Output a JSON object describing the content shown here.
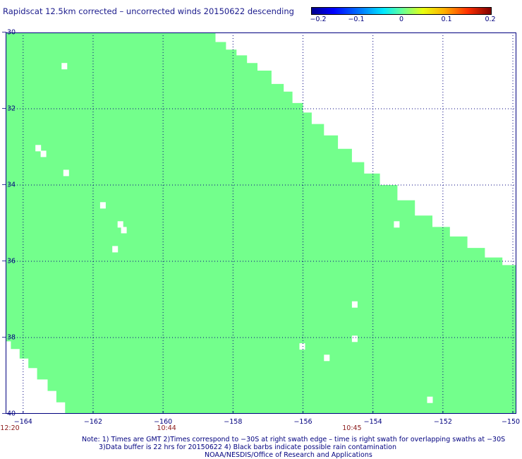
{
  "title": "Rapidscat 12.5km corrected – uncorrected winds 20150622 descending",
  "colorbar": {
    "ticks": [
      "−0.2",
      "−0.1",
      "0",
      "0.1",
      "0.2"
    ],
    "tick_values": [
      -0.2,
      -0.1,
      0,
      0.1,
      0.2
    ],
    "colors": [
      "#00008f",
      "#0000ff",
      "#00e8ff",
      "#60ff9f",
      "#e8ff10",
      "#ff3000",
      "#800000"
    ]
  },
  "map": {
    "lon_range": [
      -164.5,
      -149.9
    ],
    "lat_range": [
      -30,
      -40
    ],
    "lon_labels": [
      "−164",
      "−162",
      "−160",
      "−158",
      "−156",
      "−154",
      "−152",
      "−150"
    ],
    "lon_values": [
      -164,
      -162,
      -160,
      -158,
      -156,
      -154,
      -152,
      -150
    ],
    "lat_labels": [
      "−30",
      "−32",
      "−34",
      "−36",
      "−38",
      "−40"
    ],
    "lat_values": [
      -30,
      -32,
      -34,
      -36,
      -38,
      -40
    ],
    "swath_color": "#73ff8c",
    "grid": true,
    "swath_top_edge": [
      [
        -164.5,
        -30.0
      ],
      [
        -158.6,
        -30.0
      ],
      [
        -158.5,
        -30.25
      ],
      [
        -158.2,
        -30.45
      ],
      [
        -157.9,
        -30.6
      ],
      [
        -157.6,
        -30.8
      ],
      [
        -157.3,
        -31.0
      ],
      [
        -156.9,
        -31.35
      ],
      [
        -156.55,
        -31.55
      ],
      [
        -156.3,
        -31.85
      ],
      [
        -156.0,
        -32.1
      ],
      [
        -155.75,
        -32.4
      ],
      [
        -155.4,
        -32.7
      ],
      [
        -155.0,
        -33.05
      ],
      [
        -154.6,
        -33.4
      ],
      [
        -154.25,
        -33.7
      ],
      [
        -153.8,
        -34.0
      ],
      [
        -153.3,
        -34.4
      ],
      [
        -152.8,
        -34.8
      ],
      [
        -152.3,
        -35.1
      ],
      [
        -151.8,
        -35.35
      ],
      [
        -151.3,
        -35.65
      ],
      [
        -150.8,
        -35.9
      ],
      [
        -150.3,
        -36.1
      ],
      [
        -149.9,
        -36.25
      ]
    ],
    "swath_bottom_edge": [
      [
        -149.9,
        -40.0
      ],
      [
        -162.5,
        -40.0
      ],
      [
        -162.8,
        -39.7
      ],
      [
        -163.05,
        -39.4
      ],
      [
        -163.3,
        -39.1
      ],
      [
        -163.6,
        -38.8
      ],
      [
        -163.85,
        -38.55
      ],
      [
        -164.1,
        -38.3
      ],
      [
        -164.35,
        -38.1
      ],
      [
        -164.5,
        -37.9
      ]
    ],
    "missing_cells": [
      [
        -162.9,
        -30.8
      ],
      [
        -163.65,
        -32.95
      ],
      [
        -163.5,
        -33.1
      ],
      [
        -162.85,
        -33.6
      ],
      [
        -161.8,
        -34.45
      ],
      [
        -161.3,
        -34.95
      ],
      [
        -161.2,
        -35.1
      ],
      [
        -161.45,
        -35.6
      ],
      [
        -156.1,
        -38.15
      ],
      [
        -155.4,
        -38.45
      ],
      [
        -154.6,
        -37.05
      ],
      [
        -154.6,
        -37.95
      ],
      [
        -153.4,
        -34.95
      ],
      [
        -152.45,
        -39.55
      ]
    ]
  },
  "times": [
    {
      "label": "12:20",
      "lon": -164.6
    },
    {
      "label": "10:44",
      "lon": -159.9
    },
    {
      "label": "10:45",
      "lon": -154.6
    }
  ],
  "notes": [
    "Note: 1) Times are GMT 2)Times correspond to −30S at right swath edge – time is right swath for overlapping swaths at −30S",
    "3)Data buffer is 22 hrs for 20150622 4) Black barbs indicate possible rain contamination",
    "NOAA/NESDIS/Office of Research and Applications"
  ]
}
